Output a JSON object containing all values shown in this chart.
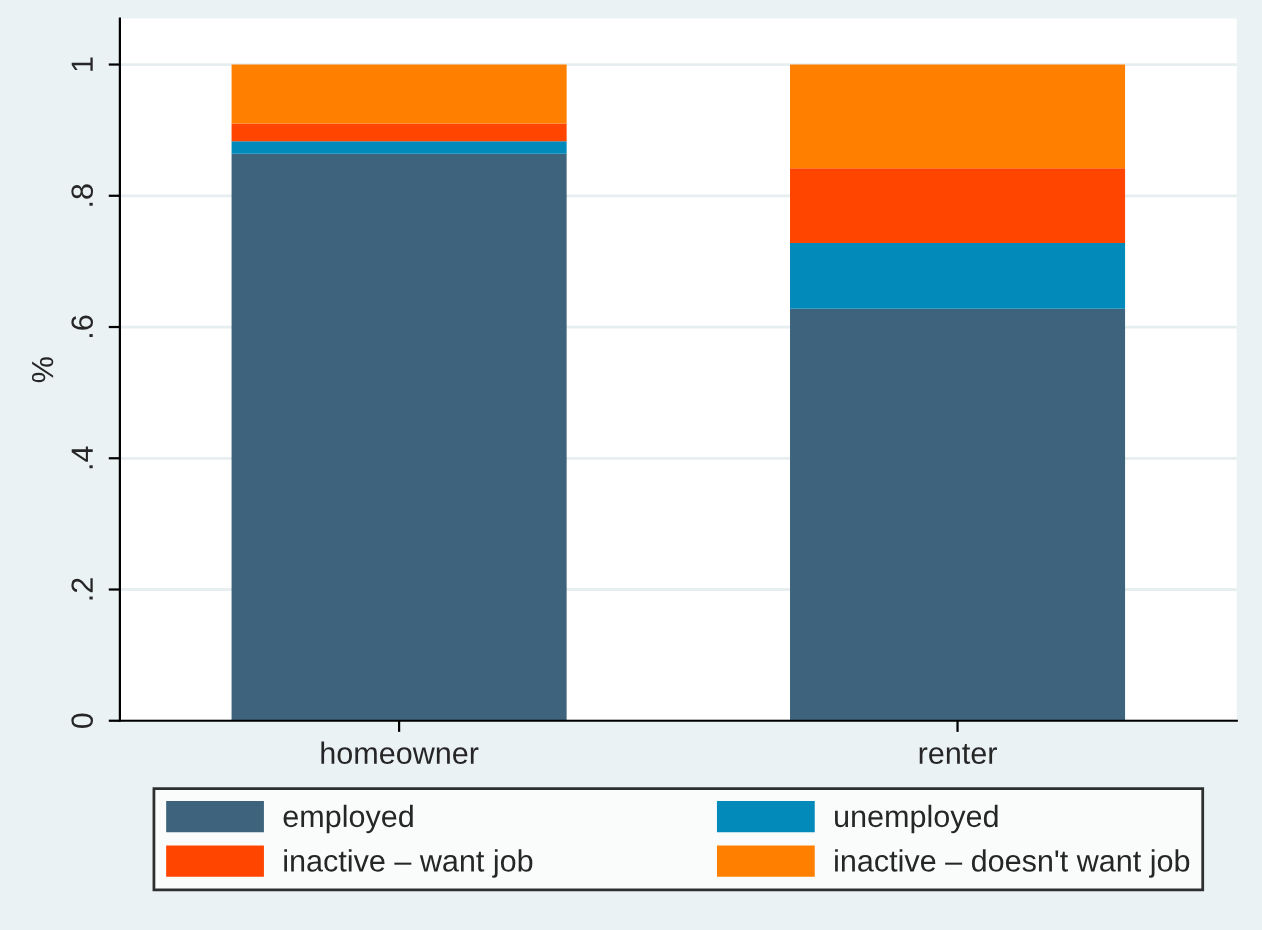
{
  "chart_data": {
    "type": "bar",
    "stacked": true,
    "ylabel": "%",
    "categories": [
      "homeowner",
      "renter"
    ],
    "series": [
      {
        "name": "employed",
        "color": "#3e647d",
        "values": [
          0.864,
          0.628
        ]
      },
      {
        "name": "unemployed",
        "color": "#028abb",
        "values": [
          0.019,
          0.1
        ]
      },
      {
        "name": "inactive – want job",
        "color": "#ff4500",
        "values": [
          0.027,
          0.114
        ]
      },
      {
        "name": "inactive – doesn't want job",
        "color": "#ff8000",
        "values": [
          0.09,
          0.158
        ]
      }
    ],
    "ylim": [
      0,
      1.07
    ],
    "yticks": [
      0,
      {
        "value": 0.2,
        "label": ".2"
      },
      {
        "value": 0.4,
        "label": ".4"
      },
      {
        "value": 0.6,
        "label": ".6"
      },
      {
        "value": 0.8,
        "label": ".8"
      },
      1
    ],
    "grid": "y",
    "legend": "bottom"
  }
}
